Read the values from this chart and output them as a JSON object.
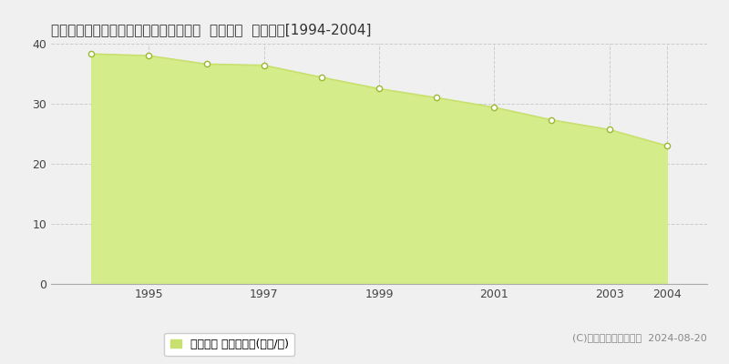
{
  "title": "岐阜県各務原市つつじが丘５丁目１０番  地価公示  地価推移[1994-2004]",
  "years": [
    1994,
    1995,
    1996,
    1997,
    1998,
    1999,
    2000,
    2001,
    2002,
    2003,
    2004
  ],
  "values": [
    38.3,
    38.0,
    36.6,
    36.4,
    34.4,
    32.5,
    31.0,
    29.4,
    27.3,
    25.7,
    23.0
  ],
  "ylim": [
    0,
    40
  ],
  "yticks": [
    0,
    10,
    20,
    30,
    40
  ],
  "xtick_labels": [
    "1995",
    "1997",
    "1999",
    "2001",
    "2003",
    "2004"
  ],
  "xtick_positions": [
    1995,
    1997,
    1999,
    2001,
    2003,
    2004
  ],
  "line_color": "#c8e06e",
  "fill_color": "#d4ec8a",
  "marker_facecolor": "#ffffff",
  "marker_edgecolor": "#9ab830",
  "grid_color": "#cccccc",
  "bg_color": "#f0f0f0",
  "plot_bg_color": "#f0f0f0",
  "legend_label": "地価公示 平均坪単価(万円/坪)",
  "legend_color": "#c8e06e",
  "copyright_text": "(C)土地価格ドットコム  2024-08-20",
  "title_fontsize": 11,
  "axis_fontsize": 9,
  "legend_fontsize": 9,
  "copyright_fontsize": 8
}
